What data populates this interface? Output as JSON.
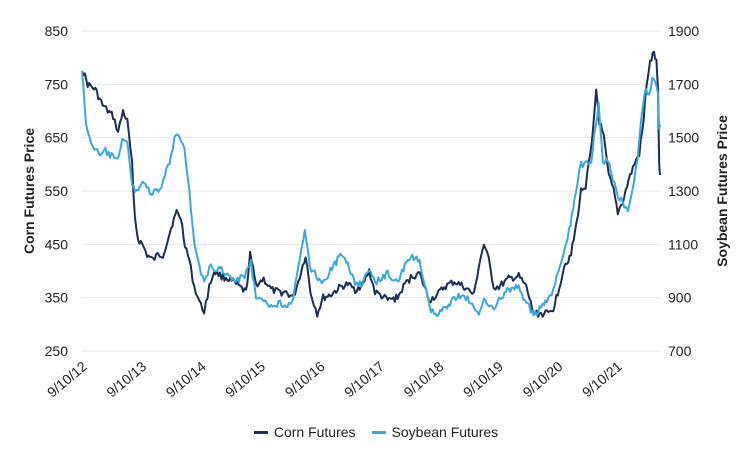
{
  "chart_data": {
    "type": "line",
    "xlabel": "",
    "ylabel_left": "Corn Futures Price",
    "ylabel_right": "Soybean Futures Price",
    "ylim_left": [
      250,
      850
    ],
    "ylim_right": [
      700,
      1900
    ],
    "yticks_left": [
      "850",
      "750",
      "650",
      "550",
      "450",
      "350",
      "250"
    ],
    "yticks_right": [
      "1900",
      "1700",
      "1500",
      "1300",
      "1100",
      "900",
      "700"
    ],
    "x_tick_labels": [
      "9/10/12",
      "9/10/13",
      "9/10/14",
      "9/10/15",
      "9/10/16",
      "9/10/17",
      "9/10/18",
      "9/10/19",
      "9/10/20",
      "9/10/21"
    ],
    "x_range": [
      "2012-09-10",
      "2022-06-01"
    ],
    "grid": "horizontal",
    "legend_position": "bottom-center",
    "series": [
      {
        "name": "Corn Futures",
        "axis": "left",
        "color": "#1b2f52",
        "points": [
          [
            "2012-09-10",
            780
          ],
          [
            "2012-10-15",
            750
          ],
          [
            "2012-12-01",
            740
          ],
          [
            "2013-01-15",
            710
          ],
          [
            "2013-02-15",
            700
          ],
          [
            "2013-03-20",
            690
          ],
          [
            "2013-04-20",
            660
          ],
          [
            "2013-05-20",
            700
          ],
          [
            "2013-06-15",
            680
          ],
          [
            "2013-07-15",
            600
          ],
          [
            "2013-08-01",
            500
          ],
          [
            "2013-08-20",
            460
          ],
          [
            "2013-09-15",
            450
          ],
          [
            "2013-10-15",
            430
          ],
          [
            "2013-11-20",
            420
          ],
          [
            "2013-12-20",
            430
          ],
          [
            "2014-01-20",
            430
          ],
          [
            "2014-02-20",
            460
          ],
          [
            "2014-03-20",
            490
          ],
          [
            "2014-04-15",
            510
          ],
          [
            "2014-05-10",
            500
          ],
          [
            "2014-06-05",
            450
          ],
          [
            "2014-07-01",
            420
          ],
          [
            "2014-08-01",
            370
          ],
          [
            "2014-09-10",
            335
          ],
          [
            "2014-10-01",
            325
          ],
          [
            "2014-11-01",
            370
          ],
          [
            "2014-12-01",
            400
          ],
          [
            "2015-01-15",
            390
          ],
          [
            "2015-03-01",
            385
          ],
          [
            "2015-04-15",
            375
          ],
          [
            "2015-06-15",
            360
          ],
          [
            "2015-07-10",
            430
          ],
          [
            "2015-08-15",
            375
          ],
          [
            "2015-10-01",
            385
          ],
          [
            "2015-11-15",
            365
          ],
          [
            "2016-01-01",
            360
          ],
          [
            "2016-02-15",
            360
          ],
          [
            "2016-04-01",
            350
          ],
          [
            "2016-05-10",
            390
          ],
          [
            "2016-06-15",
            430
          ],
          [
            "2016-07-15",
            360
          ],
          [
            "2016-08-25",
            320
          ],
          [
            "2016-10-01",
            350
          ],
          [
            "2016-11-15",
            355
          ],
          [
            "2017-01-15",
            370
          ],
          [
            "2017-03-01",
            375
          ],
          [
            "2017-04-15",
            365
          ],
          [
            "2017-06-01",
            375
          ],
          [
            "2017-07-10",
            400
          ],
          [
            "2017-08-15",
            360
          ],
          [
            "2017-09-15",
            355
          ],
          [
            "2017-11-01",
            345
          ],
          [
            "2018-01-01",
            350
          ],
          [
            "2018-02-15",
            375
          ],
          [
            "2018-04-01",
            390
          ],
          [
            "2018-05-15",
            395
          ],
          [
            "2018-06-15",
            370
          ],
          [
            "2018-07-15",
            345
          ],
          [
            "2018-09-01",
            355
          ],
          [
            "2018-10-15",
            370
          ],
          [
            "2018-12-15",
            380
          ],
          [
            "2019-02-15",
            370
          ],
          [
            "2019-04-15",
            355
          ],
          [
            "2019-05-15",
            410
          ],
          [
            "2019-06-15",
            450
          ],
          [
            "2019-07-15",
            420
          ],
          [
            "2019-08-15",
            370
          ],
          [
            "2019-09-15",
            370
          ],
          [
            "2019-11-15",
            385
          ],
          [
            "2020-01-15",
            390
          ],
          [
            "2020-03-01",
            370
          ],
          [
            "2020-04-15",
            320
          ],
          [
            "2020-06-01",
            320
          ],
          [
            "2020-07-15",
            320
          ],
          [
            "2020-08-15",
            330
          ],
          [
            "2020-09-20",
            370
          ],
          [
            "2020-10-20",
            410
          ],
          [
            "2020-12-01",
            430
          ],
          [
            "2021-01-05",
            490
          ],
          [
            "2021-02-01",
            550
          ],
          [
            "2021-03-01",
            560
          ],
          [
            "2021-04-10",
            640
          ],
          [
            "2021-05-05",
            740
          ],
          [
            "2021-05-25",
            680
          ],
          [
            "2021-06-20",
            650
          ],
          [
            "2021-07-20",
            580
          ],
          [
            "2021-08-20",
            550
          ],
          [
            "2021-09-15",
            510
          ],
          [
            "2021-10-15",
            530
          ],
          [
            "2021-11-20",
            570
          ],
          [
            "2021-12-25",
            600
          ],
          [
            "2022-01-25",
            620
          ],
          [
            "2022-02-20",
            680
          ],
          [
            "2022-03-10",
            750
          ],
          [
            "2022-04-01",
            790
          ],
          [
            "2022-04-25",
            810
          ],
          [
            "2022-05-10",
            790
          ],
          [
            "2022-05-20",
            740
          ],
          [
            "2022-05-27",
            600
          ],
          [
            "2022-06-01",
            580
          ]
        ]
      },
      {
        "name": "Soybean Futures",
        "axis": "right",
        "color": "#3aa8dc",
        "points": [
          [
            "2012-09-10",
            1760
          ],
          [
            "2012-10-05",
            1540
          ],
          [
            "2012-11-15",
            1470
          ],
          [
            "2013-01-01",
            1430
          ],
          [
            "2013-02-01",
            1450
          ],
          [
            "2013-03-10",
            1430
          ],
          [
            "2013-04-15",
            1410
          ],
          [
            "2013-05-15",
            1500
          ],
          [
            "2013-06-15",
            1480
          ],
          [
            "2013-07-15",
            1320
          ],
          [
            "2013-08-10",
            1300
          ],
          [
            "2013-09-01",
            1320
          ],
          [
            "2013-09-25",
            1340
          ],
          [
            "2013-11-01",
            1290
          ],
          [
            "2014-01-01",
            1300
          ],
          [
            "2014-02-01",
            1360
          ],
          [
            "2014-03-01",
            1400
          ],
          [
            "2014-04-01",
            1500
          ],
          [
            "2014-05-01",
            1510
          ],
          [
            "2014-06-01",
            1470
          ],
          [
            "2014-07-01",
            1300
          ],
          [
            "2014-08-01",
            1100
          ],
          [
            "2014-09-01",
            1020
          ],
          [
            "2014-10-01",
            950
          ],
          [
            "2014-11-01",
            1020
          ],
          [
            "2014-12-01",
            1000
          ],
          [
            "2015-01-15",
            1010
          ],
          [
            "2015-03-01",
            980
          ],
          [
            "2015-04-15",
            960
          ],
          [
            "2015-06-15",
            990
          ],
          [
            "2015-07-15",
            1030
          ],
          [
            "2015-08-15",
            900
          ],
          [
            "2015-10-01",
            880
          ],
          [
            "2015-11-15",
            870
          ],
          [
            "2016-01-01",
            880
          ],
          [
            "2016-02-15",
            870
          ],
          [
            "2016-04-01",
            900
          ],
          [
            "2016-05-10",
            1040
          ],
          [
            "2016-06-10",
            1150
          ],
          [
            "2016-07-10",
            1020
          ],
          [
            "2016-08-20",
            980
          ],
          [
            "2016-10-01",
            960
          ],
          [
            "2016-11-15",
            1000
          ],
          [
            "2017-01-15",
            1060
          ],
          [
            "2017-03-01",
            1020
          ],
          [
            "2017-04-15",
            960
          ],
          [
            "2017-06-01",
            950
          ],
          [
            "2017-07-10",
            1010
          ],
          [
            "2017-08-15",
            950
          ],
          [
            "2017-09-15",
            970
          ],
          [
            "2017-11-01",
            990
          ],
          [
            "2018-01-01",
            960
          ],
          [
            "2018-02-15",
            1020
          ],
          [
            "2018-04-01",
            1050
          ],
          [
            "2018-05-15",
            1040
          ],
          [
            "2018-06-15",
            950
          ],
          [
            "2018-07-15",
            860
          ],
          [
            "2018-09-01",
            830
          ],
          [
            "2018-10-15",
            860
          ],
          [
            "2018-12-15",
            900
          ],
          [
            "2019-02-15",
            910
          ],
          [
            "2019-04-15",
            860
          ],
          [
            "2019-05-15",
            830
          ],
          [
            "2019-06-15",
            900
          ],
          [
            "2019-07-15",
            880
          ],
          [
            "2019-08-15",
            860
          ],
          [
            "2019-09-15",
            890
          ],
          [
            "2019-11-15",
            930
          ],
          [
            "2020-01-15",
            940
          ],
          [
            "2020-03-01",
            880
          ],
          [
            "2020-04-15",
            840
          ],
          [
            "2020-06-01",
            860
          ],
          [
            "2020-07-15",
            890
          ],
          [
            "2020-08-15",
            930
          ],
          [
            "2020-09-15",
            1000
          ],
          [
            "2020-10-15",
            1050
          ],
          [
            "2020-11-20",
            1150
          ],
          [
            "2021-01-01",
            1300
          ],
          [
            "2021-02-01",
            1400
          ],
          [
            "2021-03-01",
            1400
          ],
          [
            "2021-04-05",
            1420
          ],
          [
            "2021-05-01",
            1540
          ],
          [
            "2021-05-20",
            1620
          ],
          [
            "2021-06-15",
            1400
          ],
          [
            "2021-07-15",
            1420
          ],
          [
            "2021-08-15",
            1340
          ],
          [
            "2021-09-15",
            1280
          ],
          [
            "2021-10-15",
            1260
          ],
          [
            "2021-11-15",
            1230
          ],
          [
            "2021-12-15",
            1310
          ],
          [
            "2022-01-15",
            1420
          ],
          [
            "2022-02-10",
            1600
          ],
          [
            "2022-03-01",
            1680
          ],
          [
            "2022-03-25",
            1660
          ],
          [
            "2022-04-15",
            1720
          ],
          [
            "2022-05-05",
            1700
          ],
          [
            "2022-05-20",
            1660
          ],
          [
            "2022-05-27",
            1540
          ],
          [
            "2022-06-01",
            1540
          ]
        ]
      }
    ]
  }
}
